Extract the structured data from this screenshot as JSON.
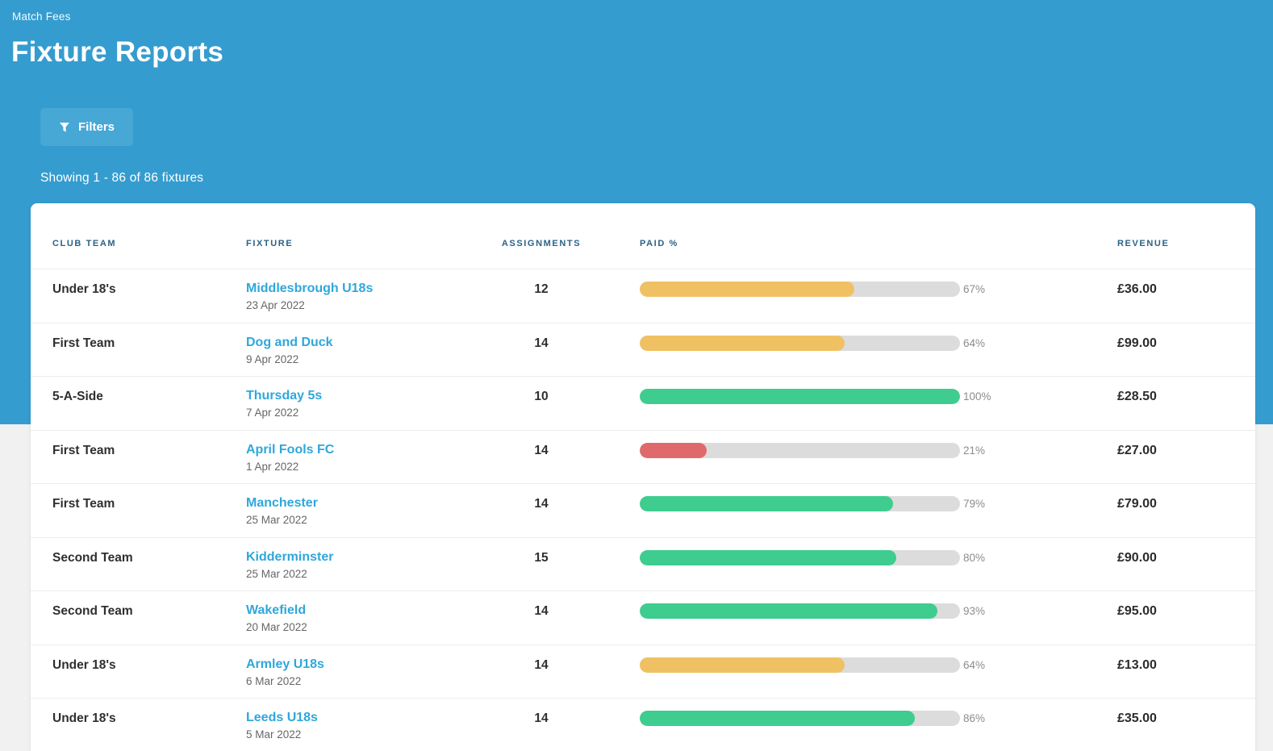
{
  "page": {
    "breadcrumb": "Match Fees",
    "title": "Fixture Reports",
    "filters_button_label": "Filters",
    "filter_icon": "funnel-icon",
    "showing_text": "Showing 1 - 86 of 86 fixtures"
  },
  "colors": {
    "header_background": "#359ccf",
    "filters_button_background": "#47a7d5",
    "link_blue": "#2fa7db",
    "column_header_text": "#2a6286",
    "bar_green": "#3ecd8e",
    "bar_amber": "#f0c162",
    "bar_red": "#e0696b",
    "bar_track": "#dcdcdc",
    "page_background": "#f1f1f1"
  },
  "table": {
    "columns": [
      "Club Team",
      "Fixture",
      "Assignments",
      "Paid %",
      "Revenue"
    ],
    "rows": [
      {
        "club_team": "Under 18's",
        "fixture": "Middlesbrough U18s",
        "date": "23 Apr 2022",
        "assignments": "12",
        "paid_pct": 67,
        "paid_label": "67%",
        "status": "amber",
        "revenue": "£36.00"
      },
      {
        "club_team": "First Team",
        "fixture": "Dog and Duck",
        "date": "9 Apr 2022",
        "assignments": "14",
        "paid_pct": 64,
        "paid_label": "64%",
        "status": "amber",
        "revenue": "£99.00"
      },
      {
        "club_team": "5-A-Side",
        "fixture": "Thursday 5s",
        "date": "7 Apr 2022",
        "assignments": "10",
        "paid_pct": 100,
        "paid_label": "100%",
        "status": "green",
        "revenue": "£28.50"
      },
      {
        "club_team": "First Team",
        "fixture": "April Fools FC",
        "date": "1 Apr 2022",
        "assignments": "14",
        "paid_pct": 21,
        "paid_label": "21%",
        "status": "red",
        "revenue": "£27.00"
      },
      {
        "club_team": "First Team",
        "fixture": "Manchester",
        "date": "25 Mar 2022",
        "assignments": "14",
        "paid_pct": 79,
        "paid_label": "79%",
        "status": "green",
        "revenue": "£79.00"
      },
      {
        "club_team": "Second Team",
        "fixture": "Kidderminster",
        "date": "25 Mar 2022",
        "assignments": "15",
        "paid_pct": 80,
        "paid_label": "80%",
        "status": "green",
        "revenue": "£90.00"
      },
      {
        "club_team": "Second Team",
        "fixture": "Wakefield",
        "date": "20 Mar 2022",
        "assignments": "14",
        "paid_pct": 93,
        "paid_label": "93%",
        "status": "green",
        "revenue": "£95.00"
      },
      {
        "club_team": "Under 18's",
        "fixture": "Armley U18s",
        "date": "6 Mar 2022",
        "assignments": "14",
        "paid_pct": 64,
        "paid_label": "64%",
        "status": "amber",
        "revenue": "£13.00"
      },
      {
        "club_team": "Under 18's",
        "fixture": "Leeds U18s",
        "date": "5 Mar 2022",
        "assignments": "14",
        "paid_pct": 86,
        "paid_label": "86%",
        "status": "green",
        "revenue": "£35.00"
      }
    ]
  }
}
